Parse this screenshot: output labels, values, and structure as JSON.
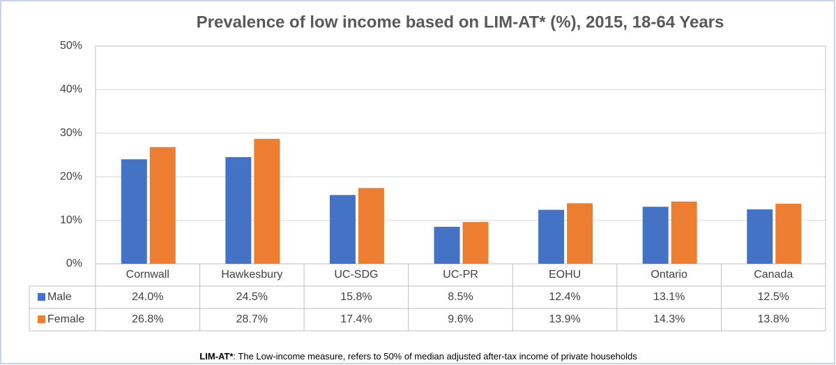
{
  "chart_data": {
    "type": "bar",
    "title": "Prevalence of low income based on LIM-AT* (%), 2015, 18-64 Years",
    "categories": [
      "Cornwall",
      "Hawkesbury",
      "UC-SDG",
      "UC-PR",
      "EOHU",
      "Ontario",
      "Canada"
    ],
    "series": [
      {
        "name": "Male",
        "color": "#4472c4",
        "values": [
          24.0,
          24.5,
          15.8,
          8.5,
          12.4,
          13.1,
          12.5
        ],
        "value_labels": [
          "24.0%",
          "24.5%",
          "15.8%",
          "8.5%",
          "12.4%",
          "13.1%",
          "12.5%"
        ]
      },
      {
        "name": "Female",
        "color": "#ed7d31",
        "values": [
          26.8,
          28.7,
          17.4,
          9.6,
          13.9,
          14.3,
          13.8
        ],
        "value_labels": [
          "26.8%",
          "28.7%",
          "17.4%",
          "9.6%",
          "13.9%",
          "14.3%",
          "13.8%"
        ]
      }
    ],
    "ylim": [
      0,
      50
    ],
    "yticks": [
      {
        "value": 0,
        "label": "0%"
      },
      {
        "value": 10,
        "label": "10%"
      },
      {
        "value": 20,
        "label": "20%"
      },
      {
        "value": 30,
        "label": "30%"
      },
      {
        "value": 40,
        "label": "40%"
      },
      {
        "value": 50,
        "label": "50%"
      }
    ],
    "grid": true,
    "footnote_term": "LIM-AT*",
    "footnote_text": ": The Low-income measure, refers to 50% of median adjusted after-tax income of private households"
  }
}
